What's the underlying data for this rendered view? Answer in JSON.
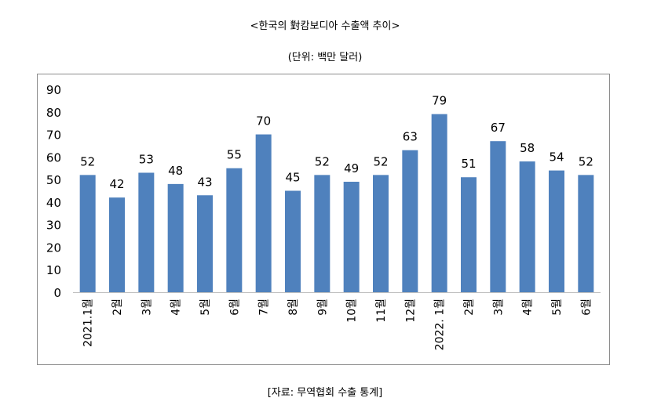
{
  "title": "<한국의 對캄보디아 수출액 추이>",
  "unit_note": "(단위: 백만 달러)",
  "source_note": "[자료: 무역협회 수출 통계]",
  "colors": {
    "bar": "#4f81bd",
    "frame": "#8c8c8c",
    "axis": "#bfbfbf"
  },
  "chart_data": {
    "type": "bar",
    "title": "<한국의 對캄보디아 수출액 추이>",
    "xlabel": "",
    "ylabel": "",
    "ylim": [
      0,
      90
    ],
    "yticks": [
      0,
      10,
      20,
      30,
      40,
      50,
      60,
      70,
      80,
      90
    ],
    "grid": false,
    "categories": [
      "2021.1월",
      "2월",
      "3월",
      "4월",
      "5월",
      "6월",
      "7월",
      "8월",
      "9월",
      "10월",
      "11월",
      "12월",
      "2022. 1월",
      "2월",
      "3월",
      "4월",
      "5월",
      "6월"
    ],
    "values": [
      52,
      42,
      53,
      48,
      43,
      55,
      70,
      45,
      52,
      49,
      52,
      63,
      79,
      51,
      67,
      58,
      54,
      52
    ],
    "data_labels": [
      "52",
      "42",
      "53",
      "48",
      "43",
      "55",
      "70",
      "45",
      "52",
      "49",
      "52",
      "63",
      "79",
      "51",
      "67",
      "58",
      "54",
      "52"
    ]
  }
}
